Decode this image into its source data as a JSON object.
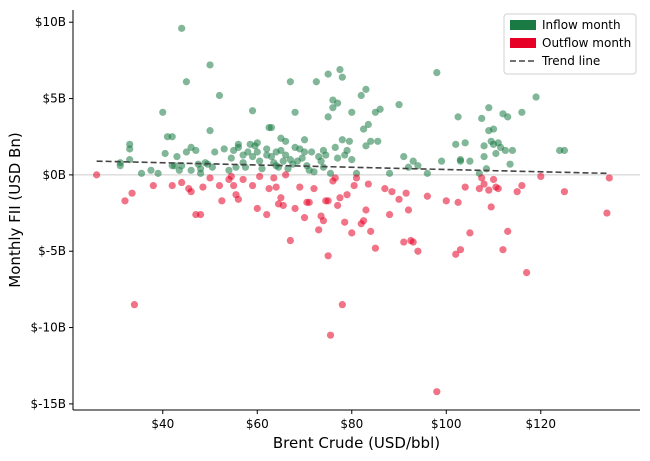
{
  "chart_data": {
    "type": "scatter",
    "xlabel": "Brent Crude (USD/bbl)",
    "ylabel": "Monthly FII (USD Bn)",
    "xlim": [
      21,
      141
    ],
    "ylim": [
      -15.4,
      10.8
    ],
    "x_ticks": [
      40,
      60,
      80,
      100,
      120
    ],
    "x_tick_labels": [
      "$40",
      "$60",
      "$80",
      "$100",
      "$120"
    ],
    "y_ticks": [
      10,
      5,
      0,
      -5,
      -10,
      -15
    ],
    "y_tick_labels": [
      "$10B",
      "$5B",
      "$0B",
      "$-5B",
      "$-10B",
      "$-15B"
    ],
    "zero_line": 0,
    "grid": false,
    "legend_position": "top-right",
    "legend": [
      {
        "label": "Inflow month",
        "color": "#1a7a43",
        "kind": "patch"
      },
      {
        "label": "Outflow month",
        "color": "#e60026",
        "kind": "patch"
      },
      {
        "label": "Trend line",
        "color": "#444444",
        "kind": "dashed-line"
      }
    ],
    "trend_line": {
      "x": [
        26,
        134
      ],
      "y": [
        0.9,
        0.1
      ]
    },
    "series": [
      {
        "name": "Inflow month",
        "color": "#1a7a43",
        "points": [
          [
            31,
            0.6
          ],
          [
            31,
            0.8
          ],
          [
            33,
            2.0
          ],
          [
            33,
            1.7
          ],
          [
            33,
            1.0
          ],
          [
            35.5,
            0.1
          ],
          [
            37.5,
            0.3
          ],
          [
            39,
            0.1
          ],
          [
            40,
            4.1
          ],
          [
            40.5,
            1.4
          ],
          [
            41,
            2.5
          ],
          [
            42,
            2.5
          ],
          [
            42,
            0.6
          ],
          [
            42.5,
            0.6
          ],
          [
            43,
            1.2
          ],
          [
            43.5,
            0.3
          ],
          [
            44,
            9.6
          ],
          [
            44,
            0.6
          ],
          [
            45,
            6.1
          ],
          [
            45,
            1.5
          ],
          [
            46,
            1.8
          ],
          [
            46,
            0.3
          ],
          [
            47,
            1.6
          ],
          [
            47.5,
            0.7
          ],
          [
            48,
            0.4
          ],
          [
            48,
            0.1
          ],
          [
            49,
            0.8
          ],
          [
            49.5,
            0.7
          ],
          [
            50,
            7.2
          ],
          [
            50,
            2.9
          ],
          [
            50.5,
            0.5
          ],
          [
            51,
            1.5
          ],
          [
            52,
            5.2
          ],
          [
            53,
            1.7
          ],
          [
            54,
            0.3
          ],
          [
            54.5,
            1.1
          ],
          [
            55,
            1.6
          ],
          [
            55.5,
            0.5
          ],
          [
            56,
            2.0
          ],
          [
            56,
            1.8
          ],
          [
            57,
            1.3
          ],
          [
            57,
            0.8
          ],
          [
            57.5,
            0.5
          ],
          [
            58,
            1.5
          ],
          [
            58.5,
            2.0
          ],
          [
            59,
            4.2
          ],
          [
            59,
            1.2
          ],
          [
            59.5,
            1.9
          ],
          [
            60,
            2.1
          ],
          [
            60,
            1.5
          ],
          [
            60.5,
            0.9
          ],
          [
            61,
            0.4
          ],
          [
            62,
            1.7
          ],
          [
            62,
            1.3
          ],
          [
            62.5,
            3.1
          ],
          [
            63,
            3.1
          ],
          [
            63,
            1.2
          ],
          [
            63.5,
            0.8
          ],
          [
            64,
            0.6
          ],
          [
            64,
            1.5
          ],
          [
            64.5,
            0.5
          ],
          [
            65,
            2.4
          ],
          [
            65,
            1.6
          ],
          [
            65.5,
            0.9
          ],
          [
            66,
            2.2
          ],
          [
            66,
            1.3
          ],
          [
            66.5,
            0.4
          ],
          [
            67,
            6.1
          ],
          [
            67,
            1.0
          ],
          [
            67.5,
            0.7
          ],
          [
            68,
            4.1
          ],
          [
            68,
            1.8
          ],
          [
            68.5,
            0.9
          ],
          [
            69,
            1.7
          ],
          [
            69.5,
            1.1
          ],
          [
            70,
            2.3
          ],
          [
            70,
            1.5
          ],
          [
            70.5,
            0.6
          ],
          [
            71,
            0.3
          ],
          [
            71.5,
            1.5
          ],
          [
            72,
            0.2
          ],
          [
            72.5,
            6.1
          ],
          [
            73,
            1.2
          ],
          [
            73.5,
            0.9
          ],
          [
            74,
            1.6
          ],
          [
            74,
            0.5
          ],
          [
            74.5,
            1.3
          ],
          [
            75,
            6.6
          ],
          [
            75,
            3.8
          ],
          [
            75.5,
            0.1
          ],
          [
            76,
            4.9
          ],
          [
            76,
            4.4
          ],
          [
            76.5,
            1.8
          ],
          [
            77,
            4.7
          ],
          [
            77,
            1.1
          ],
          [
            77.5,
            6.9
          ],
          [
            78,
            6.4
          ],
          [
            78,
            2.3
          ],
          [
            78.5,
            1.3
          ],
          [
            79,
            1.6
          ],
          [
            79.5,
            2.2
          ],
          [
            80,
            4.1
          ],
          [
            80,
            1.0
          ],
          [
            81,
            0.1
          ],
          [
            82,
            5.2
          ],
          [
            82.5,
            3.0
          ],
          [
            83,
            5.6
          ],
          [
            83,
            1.9
          ],
          [
            83.5,
            3.3
          ],
          [
            84,
            2.2
          ],
          [
            85,
            4.1
          ],
          [
            85.5,
            2.2
          ],
          [
            86,
            4.3
          ],
          [
            88,
            0.1
          ],
          [
            90,
            4.6
          ],
          [
            91,
            1.2
          ],
          [
            92,
            0.5
          ],
          [
            93,
            0.9
          ],
          [
            94,
            0.6
          ],
          [
            96,
            0.1
          ],
          [
            98,
            6.7
          ],
          [
            99,
            0.9
          ],
          [
            102,
            2.0
          ],
          [
            102.5,
            3.8
          ],
          [
            103,
            1.0
          ],
          [
            103,
            0.9
          ],
          [
            104,
            2.1
          ],
          [
            105,
            0.9
          ],
          [
            107,
            0.1
          ],
          [
            107.5,
            3.7
          ],
          [
            108,
            1.9
          ],
          [
            108,
            1.2
          ],
          [
            108.5,
            0.4
          ],
          [
            109,
            4.4
          ],
          [
            109,
            2.9
          ],
          [
            109.5,
            2.2
          ],
          [
            110,
            3.0
          ],
          [
            110,
            2.0
          ],
          [
            110.5,
            1.4
          ],
          [
            111,
            2.1
          ],
          [
            111.5,
            1.8
          ],
          [
            112,
            4.0
          ],
          [
            112.5,
            1.6
          ],
          [
            113,
            3.8
          ],
          [
            113.5,
            0.7
          ],
          [
            114,
            1.6
          ],
          [
            116,
            4.1
          ],
          [
            119,
            5.1
          ],
          [
            124,
            1.6
          ],
          [
            125,
            1.6
          ]
        ]
      },
      {
        "name": "Outflow month",
        "color": "#e60026",
        "points": [
          [
            26,
            0.0
          ],
          [
            32,
            -1.7
          ],
          [
            33.5,
            -1.2
          ],
          [
            34,
            -8.5
          ],
          [
            38,
            -0.7
          ],
          [
            42,
            -0.7
          ],
          [
            44,
            -0.5
          ],
          [
            45.5,
            -0.9
          ],
          [
            46,
            -1.1
          ],
          [
            47,
            -2.6
          ],
          [
            48,
            -2.6
          ],
          [
            48.5,
            -0.8
          ],
          [
            50,
            -0.2
          ],
          [
            52,
            -0.7
          ],
          [
            52.5,
            -1.7
          ],
          [
            54,
            -0.3
          ],
          [
            54.5,
            -0.1
          ],
          [
            55,
            -0.7
          ],
          [
            55.5,
            -1.3
          ],
          [
            56,
            -1.6
          ],
          [
            57,
            -0.3
          ],
          [
            59,
            -0.7
          ],
          [
            60,
            -2.2
          ],
          [
            60.5,
            -0.1
          ],
          [
            62,
            -2.6
          ],
          [
            62.5,
            -0.9
          ],
          [
            63.5,
            -0.2
          ],
          [
            64,
            -0.8
          ],
          [
            64.5,
            -1.9
          ],
          [
            65,
            -1.5
          ],
          [
            65.5,
            -2.0
          ],
          [
            66,
            0.0
          ],
          [
            67,
            -4.3
          ],
          [
            68,
            -2.2
          ],
          [
            69,
            -0.8
          ],
          [
            70,
            -2.8
          ],
          [
            70.5,
            -1.8
          ],
          [
            71,
            -1.8
          ],
          [
            72,
            -0.9
          ],
          [
            73,
            -3.6
          ],
          [
            73.5,
            -2.7
          ],
          [
            74,
            -3.0
          ],
          [
            74.5,
            -1.7
          ],
          [
            75,
            -1.7
          ],
          [
            75,
            -5.3
          ],
          [
            75.5,
            -10.5
          ],
          [
            76,
            -0.4
          ],
          [
            76.5,
            -0.2
          ],
          [
            77,
            -2.0
          ],
          [
            77.5,
            -1.5
          ],
          [
            78,
            -8.5
          ],
          [
            78.5,
            -3.1
          ],
          [
            79,
            -1.3
          ],
          [
            80,
            -3.8
          ],
          [
            80.5,
            -0.7
          ],
          [
            81,
            -0.2
          ],
          [
            82,
            -3.2
          ],
          [
            82.5,
            -3.0
          ],
          [
            83,
            -2.3
          ],
          [
            83.5,
            -0.6
          ],
          [
            84,
            -3.7
          ],
          [
            85,
            -4.8
          ],
          [
            87,
            -0.9
          ],
          [
            88,
            -2.6
          ],
          [
            88.5,
            -1.1
          ],
          [
            90,
            -1.6
          ],
          [
            91,
            -4.4
          ],
          [
            91.5,
            -1.2
          ],
          [
            92,
            -2.3
          ],
          [
            92.5,
            -4.3
          ],
          [
            93,
            -4.4
          ],
          [
            94,
            -5.0
          ],
          [
            96,
            -1.4
          ],
          [
            98,
            -14.2
          ],
          [
            100,
            -1.7
          ],
          [
            102,
            -5.2
          ],
          [
            102.5,
            -1.8
          ],
          [
            103,
            -4.9
          ],
          [
            104,
            -0.8
          ],
          [
            105,
            -3.8
          ],
          [
            107,
            -0.9
          ],
          [
            107.5,
            -0.2
          ],
          [
            108,
            -0.6
          ],
          [
            109,
            -1.0
          ],
          [
            109.5,
            -2.1
          ],
          [
            110,
            -0.3
          ],
          [
            110.5,
            -0.8
          ],
          [
            111,
            -0.9
          ],
          [
            112,
            -4.9
          ],
          [
            113,
            -3.7
          ],
          [
            115,
            -1.1
          ],
          [
            116,
            -0.7
          ],
          [
            117,
            -6.4
          ],
          [
            120,
            -0.1
          ],
          [
            125,
            -1.1
          ],
          [
            134,
            -2.5
          ],
          [
            134.5,
            -0.2
          ]
        ]
      }
    ]
  }
}
